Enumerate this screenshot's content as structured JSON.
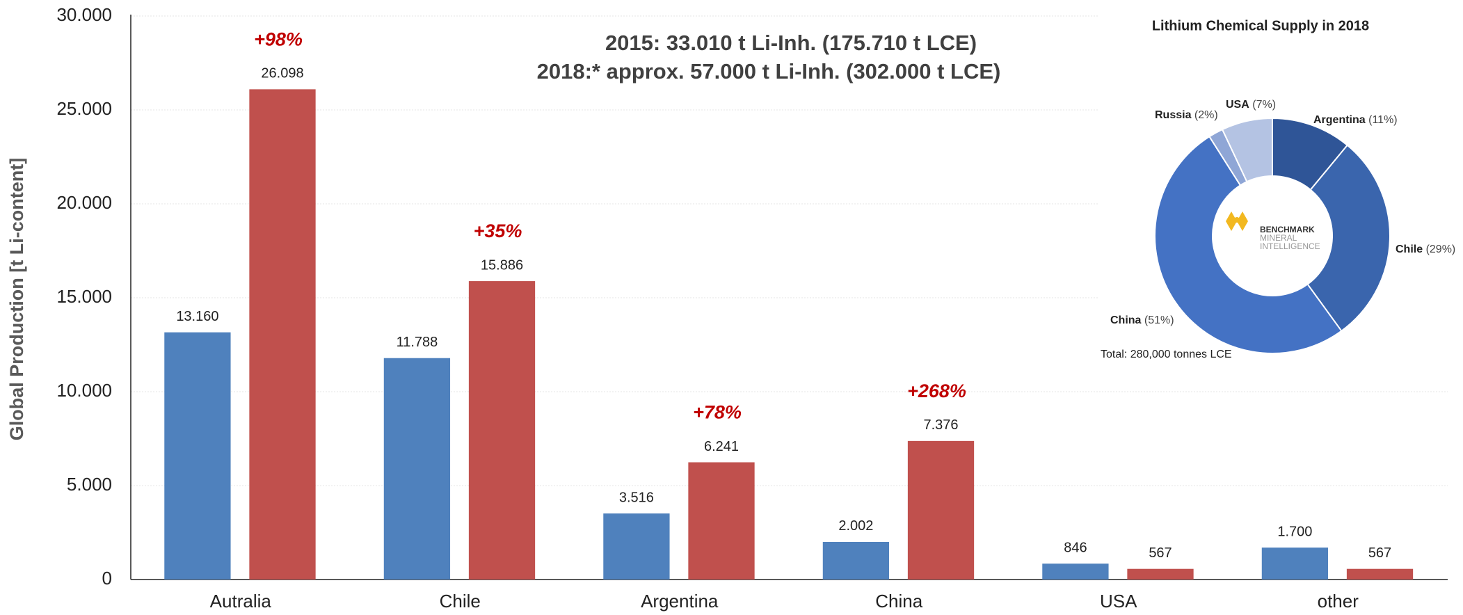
{
  "chart_data": [
    {
      "type": "bar",
      "subtitle": [
        "2015: 33.010 t Li-Inh. (175.710 t LCE)",
        "2018:* approx. 57.000 t Li-Inh. (302.000 t LCE)"
      ],
      "y_label": "Global Production [t Li-content]",
      "categories": [
        "Autralia",
        "Chile",
        "Argentina",
        "China",
        "USA",
        "other"
      ],
      "series": [
        {
          "color": "#4f81bd",
          "values": [
            13160,
            11788,
            3516,
            2002,
            846,
            1700
          ],
          "value_labels": [
            "13.160",
            "11.788",
            "3.516",
            "2.002",
            "846",
            "1.700"
          ]
        },
        {
          "color": "#c0504d",
          "values": [
            26098,
            15886,
            6241,
            7376,
            567,
            567
          ],
          "value_labels": [
            "26.098",
            "15.886",
            "6.241",
            "7.376",
            "567",
            "567"
          ],
          "growth_labels": [
            "+98%",
            "+35%",
            "+78%",
            "+268%",
            null,
            null
          ]
        }
      ],
      "ylim": [
        0,
        30000
      ],
      "yticks": [
        0,
        {
          "value": 5000,
          "label": "5.000"
        },
        {
          "value": 10000,
          "label": "10.000"
        },
        {
          "value": 15000,
          "label": "15.000"
        },
        {
          "value": 20000,
          "label": "20.000"
        },
        {
          "value": 25000,
          "label": "25.000"
        },
        {
          "value": 30000,
          "label": "30.000"
        }
      ],
      "grid": true
    },
    {
      "type": "donut",
      "title": "Lithium Chemical Supply in 2018",
      "categories": [
        "Argentina",
        "Chile",
        "China",
        "Russia",
        "USA"
      ],
      "values": [
        11,
        29,
        51,
        2,
        7
      ],
      "value_labels": [
        "(11%)",
        "(29%)",
        "(51%)",
        "(2%)",
        "(7%)"
      ],
      "colors": [
        "#2f5597",
        "#3a65ad",
        "#4472c4",
        "#8fa6d6",
        "#b4c3e3"
      ],
      "footnote": "Total: 280,000 tonnes LCE",
      "logo": [
        "BENCHMARK",
        "MINERAL",
        "INTELLIGENCE"
      ]
    }
  ]
}
